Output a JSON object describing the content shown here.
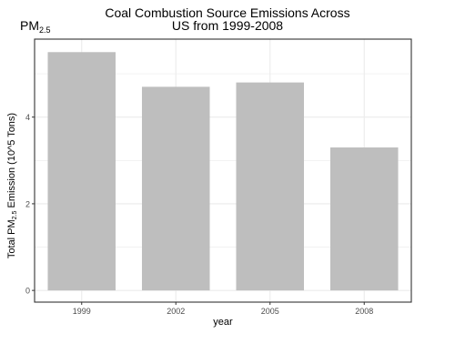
{
  "chart_data": {
    "type": "bar",
    "title_line1": "Coal Combustion Source Emissions Across",
    "title_line2": "US from 1999-2008",
    "subtitle_base": "PM",
    "subtitle_sub": "2.5",
    "xlabel": "year",
    "ylabel_prefix": "Total PM",
    "ylabel_sub": "2.5",
    "ylabel_suffix": " Emission (10^5 Tons)",
    "categories": [
      "1999",
      "2002",
      "2005",
      "2008"
    ],
    "values": [
      5.5,
      4.7,
      4.8,
      3.3
    ],
    "yticks": [
      0,
      2,
      4
    ],
    "ylim": [
      -0.27,
      5.8
    ],
    "grid": true,
    "bar_color": "#bebebe",
    "grid_color": "#ebebeb"
  }
}
